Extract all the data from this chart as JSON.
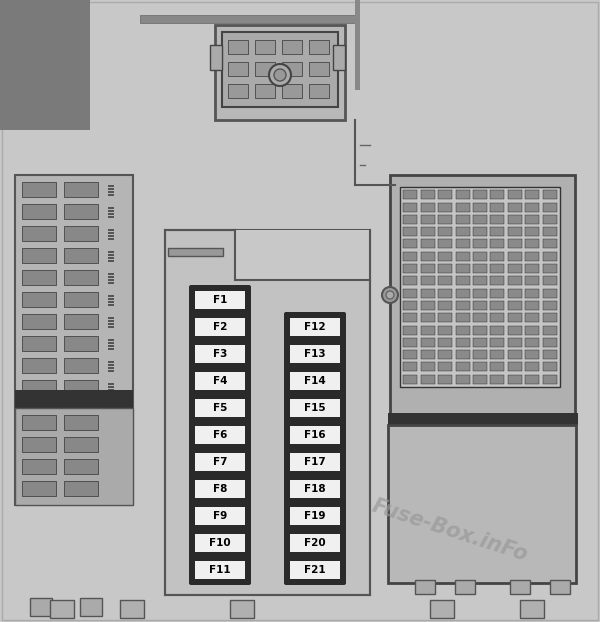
{
  "bg_color": "#c8c8c8",
  "fig_width": 6.0,
  "fig_height": 6.22,
  "watermark": "Fuse-Box.inFo",
  "watermark_color": "#999999",
  "watermark_alpha": 0.7,
  "left_col_labels": [
    "F1",
    "F2",
    "F3",
    "F4",
    "F5",
    "F6",
    "F7",
    "F8",
    "F9",
    "F10",
    "F11"
  ],
  "right_col_labels": [
    "F12",
    "F13",
    "F14",
    "F15",
    "F16",
    "F17",
    "F18",
    "F19",
    "F20",
    "F21"
  ],
  "fuse_dark_bg": "#2a2a2a",
  "fuse_label_bg": "#f0f0f0",
  "fuse_label_color": "#000000",
  "main_panel_color": "#c0c0c0",
  "dark_panel_color": "#888888",
  "medium_gray": "#a8a8a8",
  "light_gray": "#d4d4d4",
  "border_color": "#555555",
  "connector_bg": "#b0b0b0",
  "pin_color": "#888888",
  "dark_stripe": "#555555"
}
